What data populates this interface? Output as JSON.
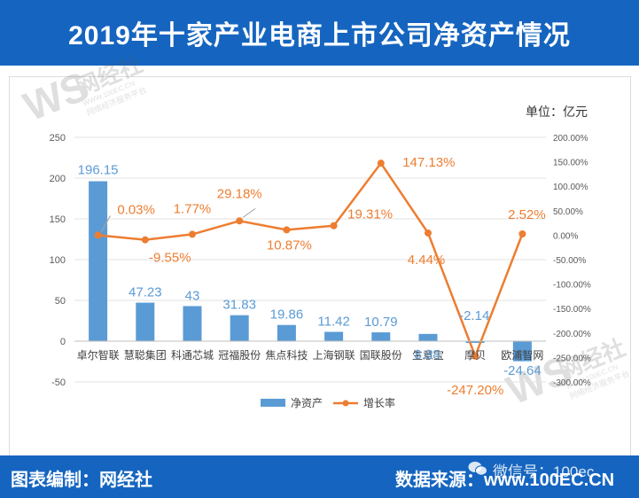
{
  "header": {
    "title": "2019年十家产业电商上市公司净资产情况"
  },
  "unit_label": "单位：亿元",
  "footer": {
    "credit": "图表编制：网经社",
    "source": "数据来源：www.100EC.CN",
    "wechat": "微信号：100ec"
  },
  "watermark": {
    "brand": "网经社",
    "domain": "WWW.100EC.CN",
    "slogan": "网络经济服务平台"
  },
  "colors": {
    "bar": "#5b9bd5",
    "line": "#ed7d31",
    "banner": "#1565c0"
  },
  "chart_data": {
    "type": "bar",
    "title": "2019年十家产业电商上市公司净资产情况",
    "categories": [
      "卓尔智联",
      "慧聪集团",
      "科通芯城",
      "冠福股份",
      "焦点科技",
      "上海钢联",
      "国联股份",
      "生意宝",
      "摩贝",
      "欧浦智网"
    ],
    "series": [
      {
        "name": "净资产",
        "type": "bar",
        "axis": "left",
        "values": [
          196.15,
          47.23,
          43,
          31.83,
          19.86,
          11.42,
          10.79,
          8.88,
          -2.14,
          -24.64
        ],
        "labels": [
          "196.15",
          "47.23",
          "43",
          "31.83",
          "19.86",
          "11.42",
          "10.79",
          "8.88",
          "-2.14",
          "-24.64"
        ]
      },
      {
        "name": "增长率",
        "type": "line",
        "axis": "right",
        "values": [
          0.03,
          -9.55,
          1.77,
          29.18,
          10.87,
          19.31,
          147.13,
          4.44,
          -247.2,
          2.52
        ],
        "labels": [
          "0.03%",
          "-9.55%",
          "1.77%",
          "29.18%",
          "10.87%",
          "19.31%",
          "147.13%",
          "4.44%",
          "-247.20%",
          "2.52%"
        ]
      }
    ],
    "left_axis": {
      "ylim": [
        -50,
        250
      ],
      "ticks": [
        250,
        200,
        150,
        100,
        50,
        0,
        -50
      ],
      "tick_labels": [
        "250",
        "200",
        "150",
        "100",
        "50",
        "0",
        "-50"
      ]
    },
    "right_axis": {
      "ylim": [
        -300,
        200
      ],
      "ticks": [
        200,
        150,
        100,
        50,
        0,
        -50,
        -100,
        -150,
        -200,
        -250,
        -300
      ],
      "tick_labels": [
        "200.00%",
        "150.00%",
        "100.00%",
        "50.00%",
        "0.00%",
        "-50.00%",
        "-100.00%",
        "-150.00%",
        "-200.00%",
        "-250.00%",
        "-300.00%"
      ]
    },
    "legend": {
      "position": "bottom",
      "labels": [
        "净资产",
        "增长率"
      ]
    },
    "grid": true
  }
}
